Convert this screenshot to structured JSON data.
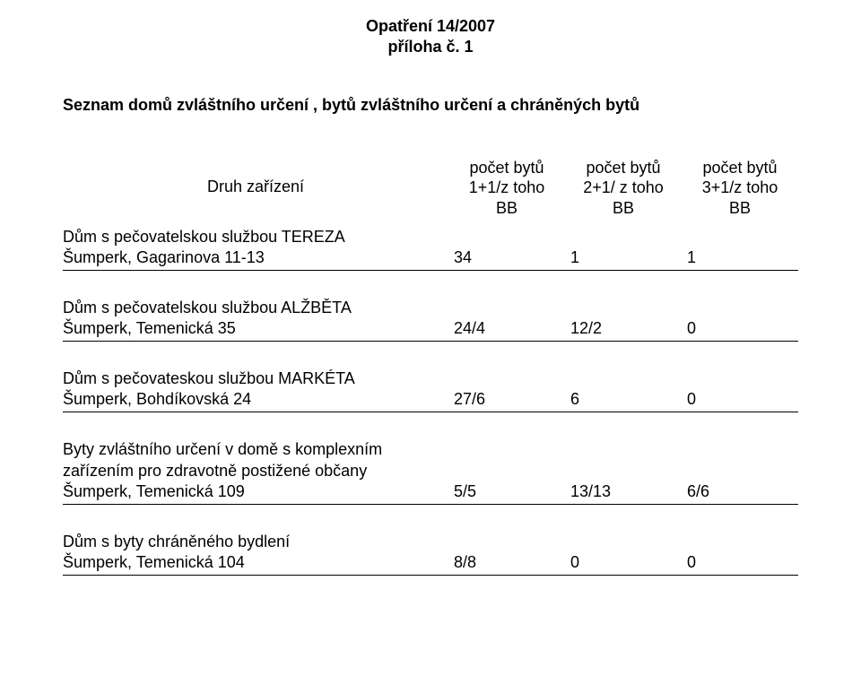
{
  "header": {
    "line1": "Opatření 14/2007",
    "line2": "příloha č. 1"
  },
  "title": "Seznam  domů zvláštního určení , bytů zvláštního určení a chráněných bytů",
  "table": {
    "druh_label": "Druh zařízení",
    "col_headers": [
      {
        "l1": "počet bytů",
        "l2": "1+1/z toho",
        "l3": "BB"
      },
      {
        "l1": "počet bytů",
        "l2": "2+1/ z toho",
        "l3": "BB"
      },
      {
        "l1": "počet bytů",
        "l2": "3+1/z toho",
        "l3": "BB"
      }
    ],
    "rows": [
      {
        "label_l1": "Dům s pečovatelskou službou TEREZA",
        "label_l2": "Šumperk, Gagarinova 11-13",
        "v1": "34",
        "v2": "1",
        "v3": "1"
      },
      {
        "label_l1": "Dům s pečovatelskou službou ALŽBĚTA",
        "label_l2": "Šumperk, Temenická 35",
        "v1": "24/4",
        "v2": "12/2",
        "v3": "0"
      },
      {
        "label_l1": "Dům s pečovateskou službou MARKÉTA",
        "label_l2": "Šumperk, Bohdíkovská 24",
        "v1": "27/6",
        "v2": "6",
        "v3": "0"
      },
      {
        "label_l1": "Byty zvláštního určení v domě s komplexním",
        "label_l2": "zařízením pro zdravotně postižené občany",
        "label_l3": "Šumperk, Temenická 109",
        "v1": "5/5",
        "v2": "13/13",
        "v3": "6/6"
      },
      {
        "label_l1": "Dům s byty chráněného bydlení",
        "label_l2": "Šumperk, Temenická 104",
        "v1": "8/8",
        "v2": "0",
        "v3": "0"
      }
    ]
  },
  "style": {
    "text_color": "#000000",
    "background_color": "#ffffff",
    "border_color": "#000000",
    "font_family": "Arial",
    "base_font_size_pt": 13
  }
}
